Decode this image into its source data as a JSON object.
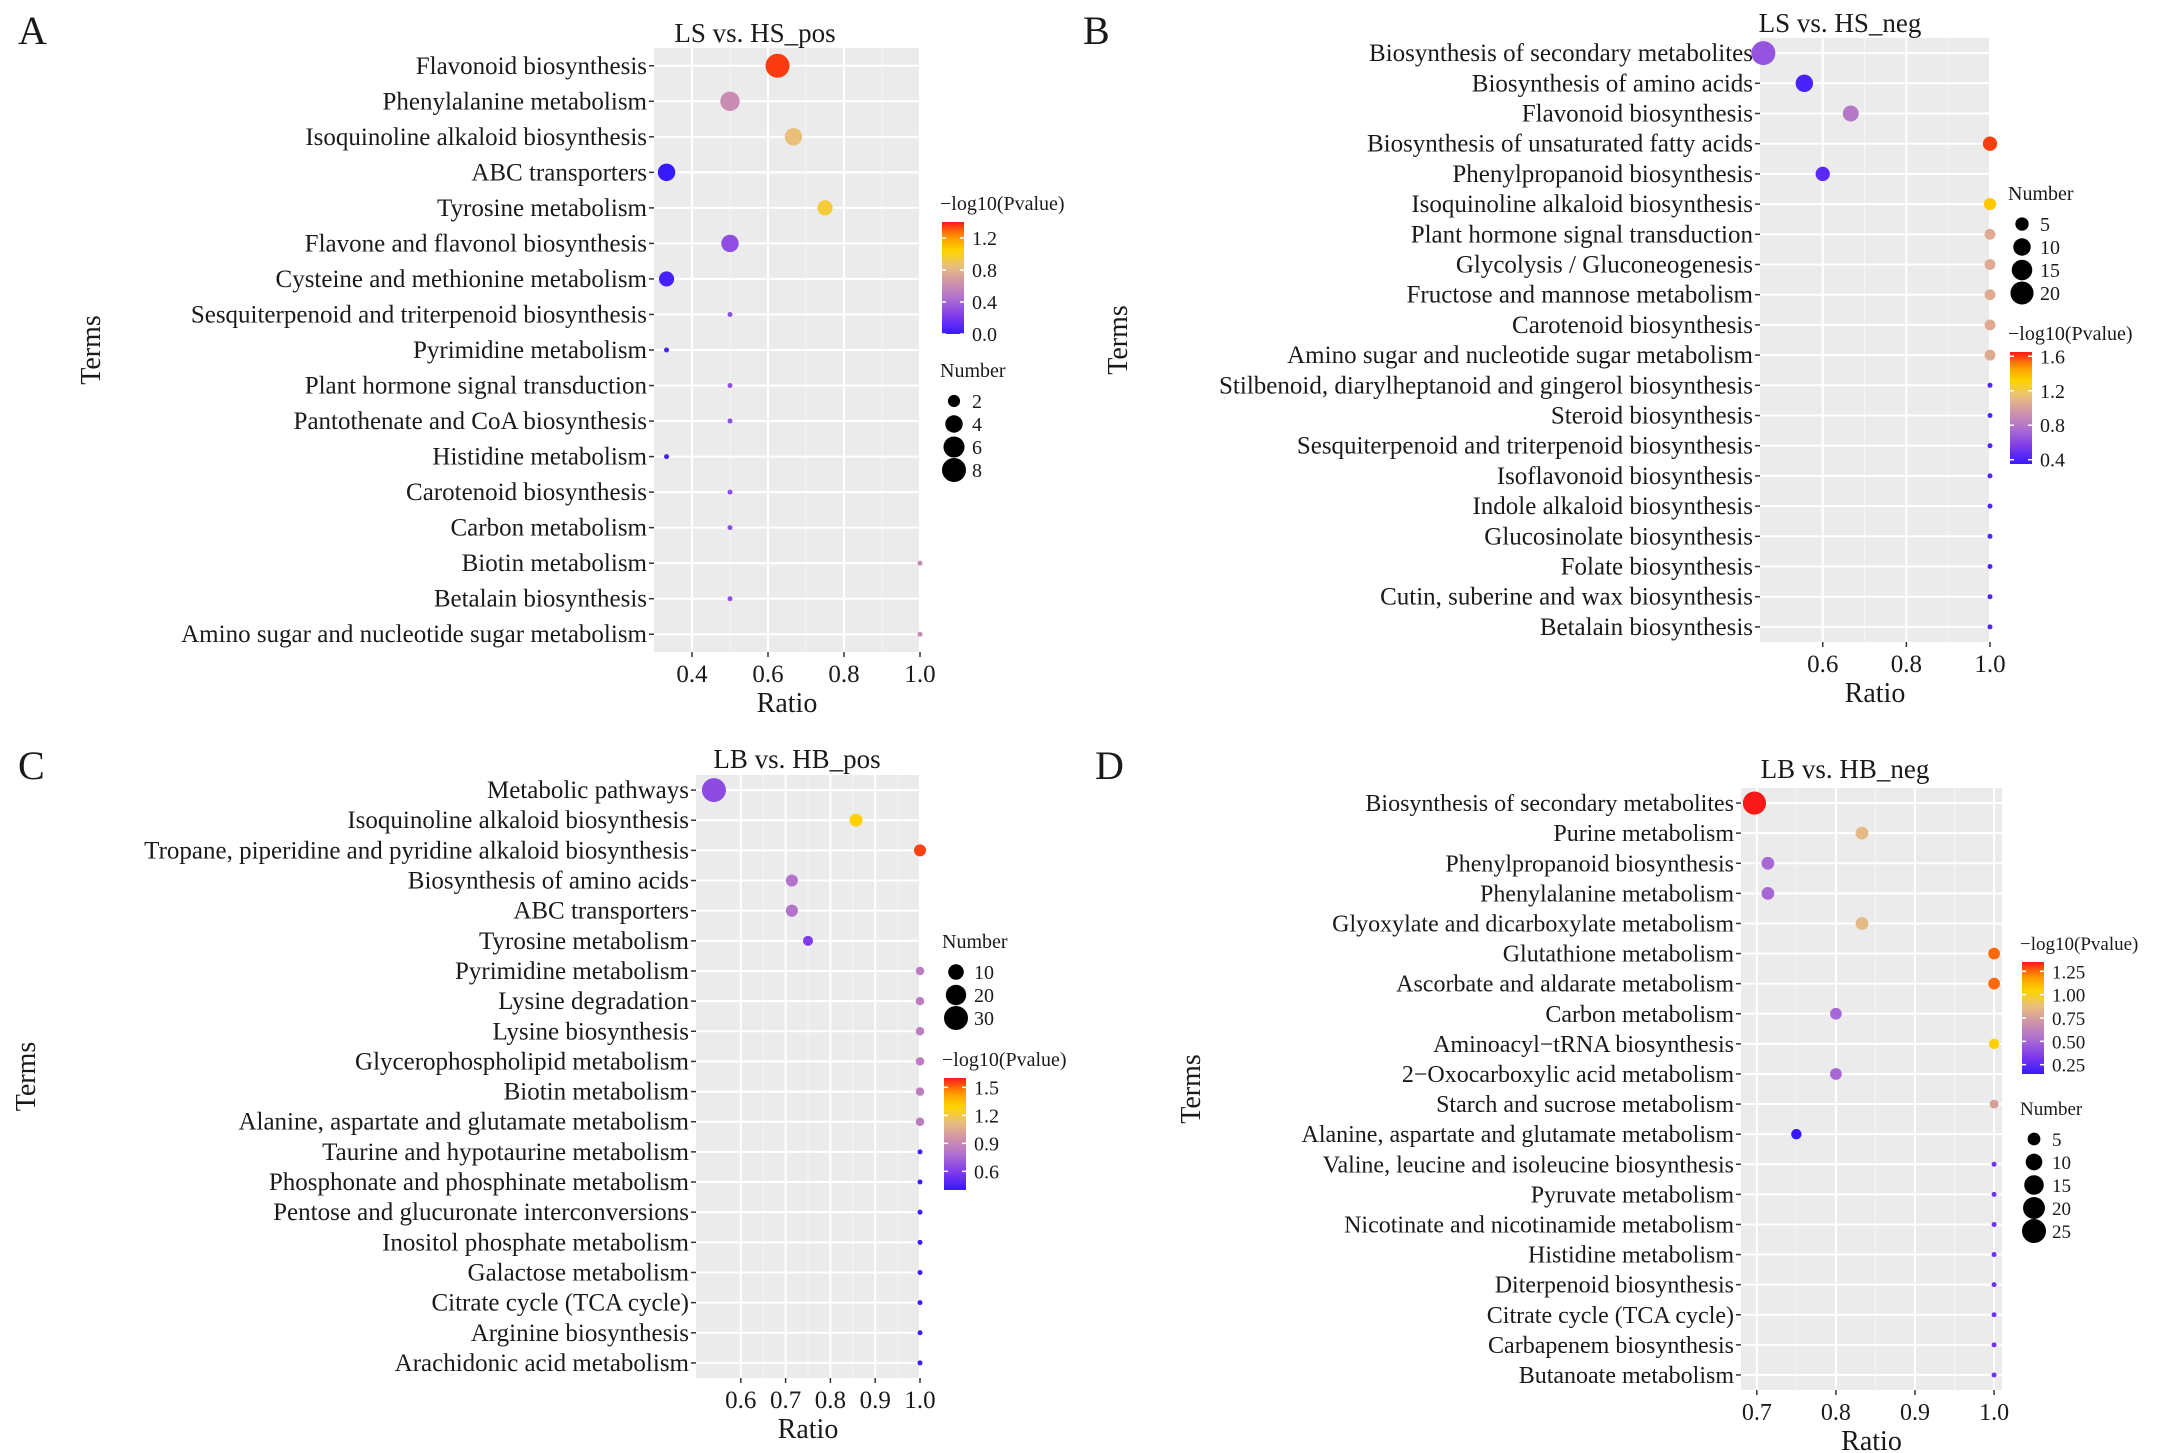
{
  "figure": {
    "panel_letters": [
      "A",
      "B",
      "C",
      "D"
    ]
  },
  "chart_data": [
    {
      "type": "scatter",
      "panel": "A",
      "title": "LS vs. HS_pos",
      "xlabel": "Ratio",
      "ylabel": "Terms",
      "xlim": [
        0.3,
        1.0
      ],
      "xticks": [
        0.4,
        0.6,
        0.8,
        1.0
      ],
      "xtick_labels": [
        "0.4",
        "0.6",
        "0.8",
        "1.0"
      ],
      "terms": [
        "Flavonoid biosynthesis",
        "Phenylalanine metabolism",
        "Isoquinoline alkaloid biosynthesis",
        "ABC transporters",
        "Tyrosine metabolism",
        "Flavone and flavonol biosynthesis",
        "Cysteine and methionine metabolism",
        "Sesquiterpenoid and triterpenoid biosynthesis",
        "Pyrimidine metabolism",
        "Plant hormone signal transduction",
        "Pantothenate and CoA biosynthesis",
        "Histidine metabolism",
        "Carotenoid biosynthesis",
        "Carbon metabolism",
        "Biotin metabolism",
        "Betalain biosynthesis",
        "Amino sugar and nucleotide sugar metabolism"
      ],
      "ratio": [
        0.625,
        0.5,
        0.667,
        0.333,
        0.75,
        0.5,
        0.333,
        0.5,
        0.333,
        0.5,
        0.5,
        0.333,
        0.5,
        0.5,
        1.0,
        0.5,
        1.0
      ],
      "number": [
        8,
        5,
        4,
        4,
        3,
        4,
        3,
        1,
        1,
        1,
        1,
        1,
        1,
        1,
        1,
        1,
        1
      ],
      "neg_log10_pvalue": [
        1.35,
        0.6,
        0.85,
        0.0,
        0.95,
        0.3,
        0.05,
        0.3,
        0.05,
        0.3,
        0.3,
        0.05,
        0.3,
        0.3,
        0.6,
        0.3,
        0.6
      ],
      "color_legend": {
        "title": "−log10(Pvalue)",
        "range": [
          0.0,
          1.4
        ],
        "ticks": [
          0.0,
          0.4,
          0.8,
          1.2
        ],
        "tick_labels": [
          "0.0",
          "0.4",
          "0.8",
          "1.2"
        ]
      },
      "size_legend": {
        "title": "Number",
        "range": [
          1,
          8
        ],
        "values": [
          2,
          4,
          6,
          8
        ],
        "labels": [
          "2",
          "4",
          "6",
          "8"
        ]
      },
      "legend_order": [
        "color",
        "size"
      ]
    },
    {
      "type": "scatter",
      "panel": "B",
      "title": "LS vs. HS_neg",
      "xlabel": "Ratio",
      "ylabel": "Terms",
      "xlim": [
        0.45,
        1.0
      ],
      "xticks": [
        0.6,
        0.8,
        1.0
      ],
      "xtick_labels": [
        "0.6",
        "0.8",
        "1.0"
      ],
      "terms": [
        "Biosynthesis of secondary metabolites",
        "Biosynthesis of amino acids",
        "Flavonoid biosynthesis",
        "Biosynthesis of unsaturated fatty acids",
        "Phenylpropanoid biosynthesis",
        "Isoquinoline alkaloid biosynthesis",
        "Plant hormone signal transduction",
        "Glycolysis / Gluconeogenesis",
        "Fructose and mannose metabolism",
        "Carotenoid biosynthesis",
        "Amino sugar and nucleotide sugar metabolism",
        "Stilbenoid, diarylheptanoid and gingerol biosynthesis",
        "Steroid biosynthesis",
        "Sesquiterpenoid and triterpenoid biosynthesis",
        "Isoflavonoid biosynthesis",
        "Indole alkaloid biosynthesis",
        "Glucosinolate biosynthesis",
        "Folate biosynthesis",
        "Cutin, suberine and wax biosynthesis",
        "Betalain biosynthesis"
      ],
      "ratio": [
        0.458,
        0.556,
        0.667,
        1.0,
        0.6,
        1.0,
        1.0,
        1.0,
        1.0,
        1.0,
        1.0,
        1.0,
        1.0,
        1.0,
        1.0,
        1.0,
        1.0,
        1.0,
        1.0,
        1.0
      ],
      "number": [
        22,
        10,
        8,
        6,
        6,
        4,
        3,
        3,
        3,
        3,
        3,
        1,
        1,
        1,
        1,
        1,
        1,
        1,
        1,
        1
      ],
      "neg_log10_pvalue": [
        0.65,
        0.4,
        0.8,
        1.6,
        0.45,
        1.35,
        1.05,
        1.05,
        1.05,
        1.05,
        1.05,
        0.42,
        0.42,
        0.42,
        0.42,
        0.42,
        0.42,
        0.42,
        0.42,
        0.42
      ],
      "color_legend": {
        "title": "−log10(Pvalue)",
        "range": [
          0.35,
          1.65
        ],
        "ticks": [
          0.4,
          0.8,
          1.2,
          1.6
        ],
        "tick_labels": [
          "0.4",
          "0.8",
          "1.2",
          "1.6"
        ]
      },
      "size_legend": {
        "title": "Number",
        "range": [
          1,
          22
        ],
        "values": [
          5,
          10,
          15,
          20
        ],
        "labels": [
          "5",
          "10",
          "15",
          "20"
        ]
      },
      "legend_order": [
        "size",
        "color"
      ]
    },
    {
      "type": "scatter",
      "panel": "C",
      "title": "LB vs. HB_pos",
      "xlabel": "Ratio",
      "ylabel": "Terms",
      "xlim": [
        0.5,
        1.0
      ],
      "xticks": [
        0.6,
        0.7,
        0.8,
        0.9,
        1.0
      ],
      "xtick_labels": [
        "0.6",
        "0.7",
        "0.8",
        "0.9",
        "1.0"
      ],
      "terms": [
        "Metabolic pathways",
        "Isoquinoline alkaloid biosynthesis",
        "Tropane, piperidine and pyridine alkaloid biosynthesis",
        "Biosynthesis of amino acids",
        "ABC transporters",
        "Tyrosine metabolism",
        "Pyrimidine metabolism",
        "Lysine degradation",
        "Lysine biosynthesis",
        "Glycerophospholipid metabolism",
        "Biotin metabolism",
        "Alanine, aspartate and glutamate metabolism",
        "Taurine and hypotaurine metabolism",
        "Phosphonate and phosphinate metabolism",
        "Pentose and glucuronate interconversions",
        "Inositol phosphate metabolism",
        "Galactose metabolism",
        "Citrate cycle (TCA cycle)",
        "Arginine biosynthesis",
        "Arachidonic acid metabolism"
      ],
      "ratio": [
        0.54,
        0.857,
        1.0,
        0.714,
        0.714,
        0.75,
        1.0,
        1.0,
        1.0,
        1.0,
        1.0,
        1.0,
        1.0,
        1.0,
        1.0,
        1.0,
        1.0,
        1.0,
        1.0,
        1.0
      ],
      "number": [
        30,
        6,
        5,
        5,
        5,
        3,
        2,
        2,
        2,
        2,
        2,
        2,
        1,
        1,
        1,
        1,
        1,
        1,
        1,
        1
      ],
      "neg_log10_pvalue": [
        0.65,
        1.3,
        1.55,
        0.8,
        0.8,
        0.6,
        0.85,
        0.85,
        0.85,
        0.85,
        0.85,
        0.85,
        0.42,
        0.42,
        0.42,
        0.42,
        0.42,
        0.42,
        0.42,
        0.42
      ],
      "color_legend": {
        "title": "−log10(Pvalue)",
        "range": [
          0.4,
          1.6
        ],
        "ticks": [
          0.6,
          0.9,
          1.2,
          1.5
        ],
        "tick_labels": [
          "0.6",
          "0.9",
          "1.2",
          "1.5"
        ]
      },
      "size_legend": {
        "title": "Number",
        "range": [
          1,
          30
        ],
        "values": [
          10,
          20,
          30
        ],
        "labels": [
          "10",
          "20",
          "30"
        ]
      },
      "legend_order": [
        "size",
        "color"
      ]
    },
    {
      "type": "scatter",
      "panel": "D",
      "title": "LB vs. HB_neg",
      "xlabel": "Ratio",
      "ylabel": "Terms",
      "xlim": [
        0.68,
        1.01
      ],
      "xticks": [
        0.7,
        0.8,
        0.9,
        1.0
      ],
      "xtick_labels": [
        "0.7",
        "0.8",
        "0.9",
        "1.0"
      ],
      "terms": [
        "Biosynthesis of secondary metabolites",
        "Purine metabolism",
        "Phenylpropanoid biosynthesis",
        "Phenylalanine metabolism",
        "Glyoxylate and dicarboxylate metabolism",
        "Glutathione metabolism",
        "Ascorbate and aldarate metabolism",
        "Carbon metabolism",
        "Aminoacyl−tRNA biosynthesis",
        "2−Oxocarboxylic acid metabolism",
        "Starch and sucrose metabolism",
        "Alanine, aspartate and glutamate metabolism",
        "Valine, leucine and isoleucine biosynthesis",
        "Pyruvate metabolism",
        "Nicotinate and nicotinamide metabolism",
        "Histidine metabolism",
        "Diterpenoid biosynthesis",
        "Citrate cycle (TCA cycle)",
        "Carbapenem biosynthesis",
        "Butanoate metabolism"
      ],
      "ratio": [
        0.697,
        0.833,
        0.714,
        0.714,
        0.833,
        1.0,
        1.0,
        0.8,
        1.0,
        0.8,
        1.0,
        0.75,
        1.0,
        1.0,
        1.0,
        1.0,
        1.0,
        1.0,
        1.0,
        1.0
      ],
      "number": [
        23,
        5,
        5,
        5,
        5,
        4,
        4,
        4,
        3,
        4,
        2,
        3,
        1,
        1,
        1,
        1,
        1,
        1,
        1,
        1
      ],
      "neg_log10_pvalue": [
        1.35,
        0.85,
        0.5,
        0.5,
        0.85,
        1.25,
        1.25,
        0.5,
        1.05,
        0.5,
        0.75,
        0.15,
        0.3,
        0.3,
        0.3,
        0.3,
        0.3,
        0.3,
        0.3,
        0.3
      ],
      "color_legend": {
        "title": "−log10(Pvalue)",
        "range": [
          0.15,
          1.35
        ],
        "ticks": [
          0.25,
          0.5,
          0.75,
          1.0,
          1.25
        ],
        "tick_labels": [
          "0.25",
          "0.50",
          "0.75",
          "1.00",
          "1.25"
        ]
      },
      "size_legend": {
        "title": "Number",
        "range": [
          1,
          25
        ],
        "values": [
          5,
          10,
          15,
          20,
          25
        ],
        "labels": [
          "5",
          "10",
          "15",
          "20",
          "25"
        ]
      },
      "legend_order": [
        "color",
        "size"
      ]
    }
  ]
}
